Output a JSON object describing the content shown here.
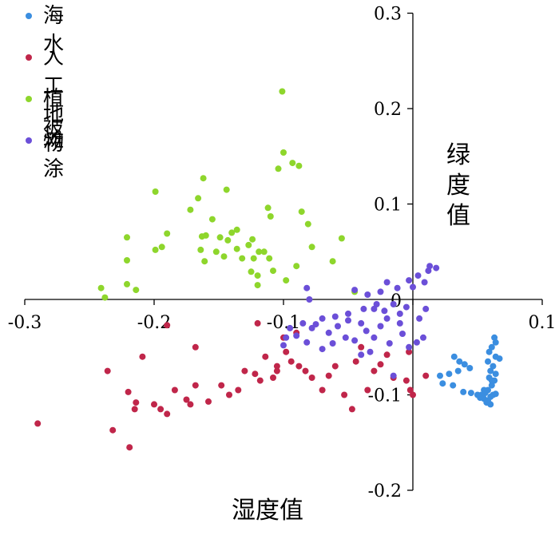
{
  "chart_data": {
    "type": "scatter",
    "xlabel": "湿度值",
    "ylabel": "绿度值",
    "xlim": [
      -0.3,
      0.1
    ],
    "ylim": [
      -0.2,
      0.3
    ],
    "x_ticks": [
      "-0.3",
      "-0.2",
      "-0.1",
      "0",
      "0.1"
    ],
    "y_ticks": [
      "0.3",
      "0.2",
      "0.1",
      "-0.1",
      "-0.2"
    ],
    "legend_position": "top-left",
    "series": [
      {
        "name": "海水",
        "color": "#3b8ee0",
        "points": [
          [
            0.063,
            -0.04
          ],
          [
            0.064,
            -0.045
          ],
          [
            0.061,
            -0.05
          ],
          [
            0.059,
            -0.055
          ],
          [
            0.064,
            -0.06
          ],
          [
            0.067,
            -0.062
          ],
          [
            0.058,
            -0.065
          ],
          [
            0.062,
            -0.07
          ],
          [
            0.06,
            -0.075
          ],
          [
            0.064,
            -0.078
          ],
          [
            0.059,
            -0.082
          ],
          [
            0.063,
            -0.085
          ],
          [
            0.061,
            -0.09
          ],
          [
            0.058,
            -0.095
          ],
          [
            0.062,
            -0.1
          ],
          [
            0.056,
            -0.098
          ],
          [
            0.053,
            -0.1
          ],
          [
            0.055,
            -0.104
          ],
          [
            0.058,
            -0.106
          ],
          [
            0.06,
            -0.102
          ],
          [
            0.057,
            -0.108
          ],
          [
            0.052,
            -0.103
          ],
          [
            0.05,
            -0.1
          ],
          [
            0.045,
            -0.098
          ],
          [
            0.032,
            -0.06
          ],
          [
            0.036,
            -0.065
          ],
          [
            0.04,
            -0.068
          ],
          [
            0.044,
            -0.072
          ],
          [
            0.035,
            -0.075
          ],
          [
            0.028,
            -0.078
          ],
          [
            0.021,
            -0.08
          ],
          [
            0.023,
            -0.088
          ],
          [
            0.031,
            -0.09
          ],
          [
            0.039,
            -0.097
          ],
          [
            0.064,
            -0.099
          ],
          [
            0.06,
            -0.11
          ],
          [
            0.055,
            -0.095
          ],
          [
            0.061,
            -0.085
          ]
        ]
      },
      {
        "name": "人工地物",
        "color": "#c0264a",
        "points": [
          [
            -0.29,
            -0.13
          ],
          [
            -0.232,
            -0.137
          ],
          [
            -0.219,
            -0.155
          ],
          [
            -0.236,
            -0.075
          ],
          [
            -0.22,
            -0.097
          ],
          [
            -0.214,
            -0.108
          ],
          [
            -0.215,
            -0.115
          ],
          [
            -0.209,
            -0.06
          ],
          [
            -0.2,
            -0.11
          ],
          [
            -0.195,
            -0.115
          ],
          [
            -0.19,
            -0.12
          ],
          [
            -0.184,
            -0.095
          ],
          [
            -0.175,
            -0.105
          ],
          [
            -0.172,
            -0.11
          ],
          [
            -0.168,
            -0.09
          ],
          [
            -0.158,
            -0.107
          ],
          [
            -0.168,
            -0.05
          ],
          [
            -0.19,
            -0.027
          ],
          [
            -0.148,
            -0.09
          ],
          [
            -0.142,
            -0.1
          ],
          [
            -0.135,
            -0.095
          ],
          [
            -0.13,
            -0.075
          ],
          [
            -0.122,
            -0.078
          ],
          [
            -0.118,
            -0.085
          ],
          [
            -0.114,
            -0.06
          ],
          [
            -0.108,
            -0.082
          ],
          [
            -0.105,
            -0.07
          ],
          [
            -0.098,
            -0.055
          ],
          [
            -0.094,
            -0.065
          ],
          [
            -0.088,
            -0.07
          ],
          [
            -0.083,
            -0.075
          ],
          [
            -0.078,
            -0.082
          ],
          [
            -0.07,
            -0.095
          ],
          [
            -0.065,
            -0.08
          ],
          [
            -0.06,
            -0.07
          ],
          [
            -0.053,
            -0.1
          ],
          [
            -0.047,
            -0.115
          ],
          [
            -0.044,
            -0.065
          ],
          [
            -0.04,
            -0.05
          ],
          [
            -0.035,
            -0.095
          ],
          [
            -0.03,
            -0.075
          ],
          [
            -0.025,
            -0.068
          ],
          [
            -0.02,
            -0.058
          ],
          [
            -0.015,
            -0.082
          ],
          [
            -0.005,
            -0.085
          ],
          [
            -0.002,
            -0.095
          ],
          [
            0.0,
            -0.1
          ],
          [
            0.01,
            -0.08
          ],
          [
            -0.003,
            -0.055
          ],
          [
            -0.1,
            -0.04
          ],
          [
            -0.09,
            -0.035
          ],
          [
            -0.12,
            -0.025
          ],
          [
            -0.105,
            -0.075
          ]
        ]
      },
      {
        "name": "植被",
        "color": "#8ed62c",
        "points": [
          [
            -0.101,
            0.218
          ],
          [
            -0.1,
            0.154
          ],
          [
            -0.093,
            0.143
          ],
          [
            -0.088,
            0.14
          ],
          [
            -0.104,
            0.137
          ],
          [
            -0.162,
            0.127
          ],
          [
            -0.199,
            0.113
          ],
          [
            -0.166,
            0.106
          ],
          [
            -0.172,
            0.094
          ],
          [
            -0.144,
            0.115
          ],
          [
            -0.112,
            0.096
          ],
          [
            -0.11,
            0.087
          ],
          [
            -0.086,
            0.092
          ],
          [
            -0.081,
            0.079
          ],
          [
            -0.155,
            0.084
          ],
          [
            -0.136,
            0.073
          ],
          [
            -0.14,
            0.07
          ],
          [
            -0.143,
            0.062
          ],
          [
            -0.149,
            0.065
          ],
          [
            -0.16,
            0.067
          ],
          [
            -0.163,
            0.066
          ],
          [
            -0.19,
            0.069
          ],
          [
            -0.221,
            0.065
          ],
          [
            -0.199,
            0.052
          ],
          [
            -0.194,
            0.055
          ],
          [
            -0.164,
            0.052
          ],
          [
            -0.152,
            0.05
          ],
          [
            -0.136,
            0.053
          ],
          [
            -0.127,
            0.057
          ],
          [
            -0.124,
            0.063
          ],
          [
            -0.119,
            0.05
          ],
          [
            -0.123,
            0.043
          ],
          [
            -0.132,
            0.043
          ],
          [
            -0.146,
            0.045
          ],
          [
            -0.161,
            0.04
          ],
          [
            -0.115,
            0.05
          ],
          [
            -0.111,
            0.043
          ],
          [
            -0.108,
            0.03
          ],
          [
            -0.125,
            0.029
          ],
          [
            -0.12,
            0.025
          ],
          [
            -0.09,
            0.035
          ],
          [
            -0.078,
            0.055
          ],
          [
            -0.055,
            0.064
          ],
          [
            -0.221,
            0.041
          ],
          [
            -0.221,
            0.016
          ],
          [
            -0.214,
            0.01
          ],
          [
            -0.241,
            0.012
          ],
          [
            -0.238,
            0.002
          ],
          [
            -0.12,
            0.015
          ],
          [
            -0.045,
            0.008
          ],
          [
            -0.062,
            0.04
          ],
          [
            -0.098,
            0.02
          ]
        ]
      },
      {
        "name": "滩涂",
        "color": "#6b4fd8",
        "points": [
          [
            0.013,
            0.035
          ],
          [
            0.018,
            0.033
          ],
          [
            0.012,
            0.03
          ],
          [
            0.004,
            0.025
          ],
          [
            -0.003,
            0.02
          ],
          [
            -0.02,
            0.018
          ],
          [
            0.009,
            0.018
          ],
          [
            0.0,
            0.013
          ],
          [
            -0.012,
            0.012
          ],
          [
            -0.025,
            0.008
          ],
          [
            -0.035,
            0.005
          ],
          [
            -0.082,
            0.012
          ],
          [
            -0.08,
            0.0
          ],
          [
            -0.045,
            0.01
          ],
          [
            -0.028,
            -0.005
          ],
          [
            -0.03,
            -0.01
          ],
          [
            -0.015,
            -0.005
          ],
          [
            -0.005,
            -0.008
          ],
          [
            0.01,
            -0.01
          ],
          [
            -0.01,
            -0.015
          ],
          [
            -0.02,
            -0.02
          ],
          [
            -0.04,
            -0.025
          ],
          [
            -0.05,
            -0.022
          ],
          [
            -0.06,
            -0.018
          ],
          [
            -0.07,
            -0.02
          ],
          [
            -0.075,
            -0.026
          ],
          [
            -0.078,
            -0.03
          ],
          [
            -0.065,
            -0.035
          ],
          [
            -0.058,
            -0.028
          ],
          [
            -0.052,
            -0.04
          ],
          [
            -0.045,
            -0.043
          ],
          [
            -0.036,
            -0.033
          ],
          [
            -0.03,
            -0.04
          ],
          [
            -0.025,
            -0.028
          ],
          [
            -0.018,
            -0.046
          ],
          [
            -0.008,
            -0.036
          ],
          [
            -0.003,
            -0.05
          ],
          [
            0.003,
            -0.045
          ],
          [
            0.008,
            -0.04
          ],
          [
            -0.062,
            -0.046
          ],
          [
            -0.07,
            -0.052
          ],
          [
            -0.082,
            -0.045
          ],
          [
            -0.09,
            -0.038
          ],
          [
            -0.098,
            -0.04
          ],
          [
            -0.1,
            -0.048
          ],
          [
            -0.085,
            -0.025
          ],
          [
            -0.095,
            -0.03
          ],
          [
            -0.04,
            -0.058
          ],
          [
            -0.033,
            -0.055
          ],
          [
            0.005,
            -0.02
          ],
          [
            -0.015,
            -0.08
          ],
          [
            -0.022,
            -0.012
          ],
          [
            -0.01,
            -0.025
          ],
          [
            -0.05,
            -0.015
          ],
          [
            -0.038,
            -0.01
          ]
        ]
      }
    ]
  }
}
